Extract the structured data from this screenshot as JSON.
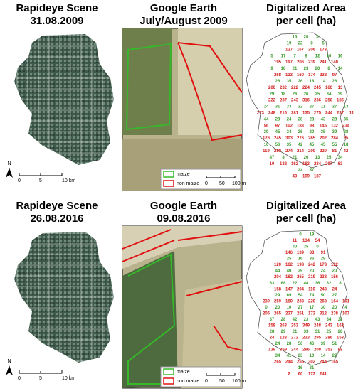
{
  "colors": {
    "maize": "#3c9a2c",
    "non_maize": "#d21f1f"
  },
  "north": "N",
  "scale_km": [
    "0",
    "5",
    "10 km"
  ],
  "scale_m": [
    "0",
    "50",
    "100 m"
  ],
  "legend": {
    "maize": "maize",
    "non_maize": "non maize"
  },
  "panels": [
    {
      "rapideye": {
        "title": "Rapideye Scene",
        "date": "31.08.2009"
      },
      "google_earth": {
        "title": "Google Earth",
        "date": "July/August 2009"
      },
      "digitalized": {
        "title": "Digitalized Area",
        "subtitle": "per cell (ha)"
      },
      "rows": [
        {
          "class": "maize",
          "values": [
            15,
            20,
            5
          ]
        },
        {
          "class": "maize",
          "values": [
            19,
            22,
            0,
            5
          ]
        },
        {
          "class": "non_maize",
          "values": [
            127,
            167,
            206,
            178
          ]
        },
        {
          "class": "maize",
          "values": [
            5,
            17,
            7,
            8,
            12,
            10,
            16
          ]
        },
        {
          "class": "non_maize",
          "values": [
            195,
            197,
            206,
            239,
            241,
            140
          ]
        },
        {
          "class": "maize",
          "values": [
            9,
            18,
            21,
            23,
            20,
            8,
            14
          ]
        },
        {
          "class": "non_maize",
          "values": [
            268,
            133,
            160,
            174,
            232,
            97
          ]
        },
        {
          "class": "maize",
          "values": [
            26,
            35,
            26,
            18,
            14,
            26
          ]
        },
        {
          "class": "non_maize",
          "values": [
            200,
            232,
            222,
            224,
            245,
            166,
            13
          ]
        },
        {
          "class": "maize",
          "values": [
            29,
            18,
            26,
            26,
            25,
            34,
            39
          ]
        },
        {
          "class": "non_maize",
          "values": [
            222,
            237,
            243,
            316,
            236,
            250,
            186
          ]
        },
        {
          "class": "maize",
          "values": [
            24,
            31,
            33,
            22,
            27,
            11,
            27,
            13
          ]
        },
        {
          "class": "non_maize",
          "values": [
            273,
            248,
            216,
            281,
            135,
            275,
            244,
            237,
            11
          ]
        },
        {
          "class": "maize",
          "values": [
            44,
            28,
            24,
            28,
            28,
            43,
            28,
            35
          ]
        },
        {
          "class": "non_maize",
          "values": [
            56,
            97,
            102,
            183,
            98,
            145,
            132,
            234
          ]
        },
        {
          "class": "maize",
          "values": [
            39,
            45,
            34,
            26,
            30,
            35,
            39,
            28
          ]
        },
        {
          "class": "non_maize",
          "values": [
            176,
            245,
            303,
            276,
            265,
            202,
            284,
            25
          ]
        },
        {
          "class": "maize",
          "values": [
            16,
            56,
            35,
            42,
            45,
            45,
            55,
            18
          ]
        },
        {
          "class": "non_maize",
          "values": [
            119,
            280,
            274,
            214,
            200,
            220,
            81,
            42
          ]
        },
        {
          "class": "maize",
          "values": [
            47,
            8,
            21,
            26,
            13,
            25,
            34
          ]
        },
        {
          "class": "non_maize",
          "values": [
            10,
            132,
            162,
            163,
            234,
            207,
            63
          ]
        },
        {
          "class": "maize",
          "values": [
            32,
            37
          ]
        },
        {
          "class": "non_maize",
          "values": [
            40,
            199,
            187
          ]
        }
      ]
    },
    {
      "rapideye": {
        "title": "Rapideye Scene",
        "date": "26.08.2016"
      },
      "google_earth": {
        "title": "Google Earth",
        "date": "09.08.2016"
      },
      "digitalized": {
        "title": "Digitalized Area",
        "subtitle": "per cell (ha)"
      },
      "rows": [
        {
          "class": "maize",
          "values": [
            0,
            19
          ]
        },
        {
          "class": "non_maize",
          "values": [
            11,
            134,
            54
          ]
        },
        {
          "class": "maize",
          "values": [
            40,
            35,
            0
          ]
        },
        {
          "class": "non_maize",
          "values": [
            146,
            139,
            88,
            91
          ]
        },
        {
          "class": "maize",
          "values": [
            25,
            16,
            36,
            29
          ]
        },
        {
          "class": "non_maize",
          "values": [
            120,
            162,
            198,
            242,
            178,
            122
          ]
        },
        {
          "class": "maize",
          "values": [
            44,
            40,
            39,
            20,
            24,
            20
          ]
        },
        {
          "class": "non_maize",
          "values": [
            204,
            182,
            265,
            219,
            238,
            156
          ]
        },
        {
          "class": "maize",
          "values": [
            63,
            68,
            22,
            48,
            36,
            32,
            8
          ]
        },
        {
          "class": "non_maize",
          "values": [
            158,
            147,
            204,
            110,
            243,
            24
          ]
        },
        {
          "class": "maize",
          "values": [
            29,
            69,
            54,
            74,
            50,
            27
          ]
        },
        {
          "class": "non_maize",
          "values": [
            230,
            259,
            180,
            233,
            220,
            263,
            164,
            101
          ]
        },
        {
          "class": "maize",
          "values": [
            0,
            20,
            10,
            27,
            17,
            30,
            20,
            4
          ]
        },
        {
          "class": "non_maize",
          "values": [
            206,
            265,
            237,
            251,
            172,
            312,
            238,
            107
          ]
        },
        {
          "class": "maize",
          "values": [
            37,
            28,
            42,
            23,
            43,
            34,
            38
          ]
        },
        {
          "class": "non_maize",
          "values": [
            158,
            263,
            253,
            349,
            248,
            243,
            162
          ]
        },
        {
          "class": "maize",
          "values": [
            28,
            29,
            21,
            33,
            31,
            25,
            28
          ]
        },
        {
          "class": "non_maize",
          "values": [
            24,
            128,
            272,
            233,
            295,
            286,
            153
          ]
        },
        {
          "class": "maize",
          "values": [
            24,
            28,
            56,
            46,
            39,
            51
          ]
        },
        {
          "class": "non_maize",
          "values": [
            139,
            359,
            244,
            296,
            200,
            353,
            88
          ]
        },
        {
          "class": "maize",
          "values": [
            34,
            41,
            23,
            10,
            14,
            27
          ]
        },
        {
          "class": "non_maize",
          "values": [
            265,
            244,
            255,
            302,
            244,
            165
          ]
        },
        {
          "class": "maize",
          "values": [
            16,
            31
          ]
        },
        {
          "class": "non_maize",
          "values": [
            2,
            60,
            173,
            241
          ]
        }
      ]
    }
  ]
}
